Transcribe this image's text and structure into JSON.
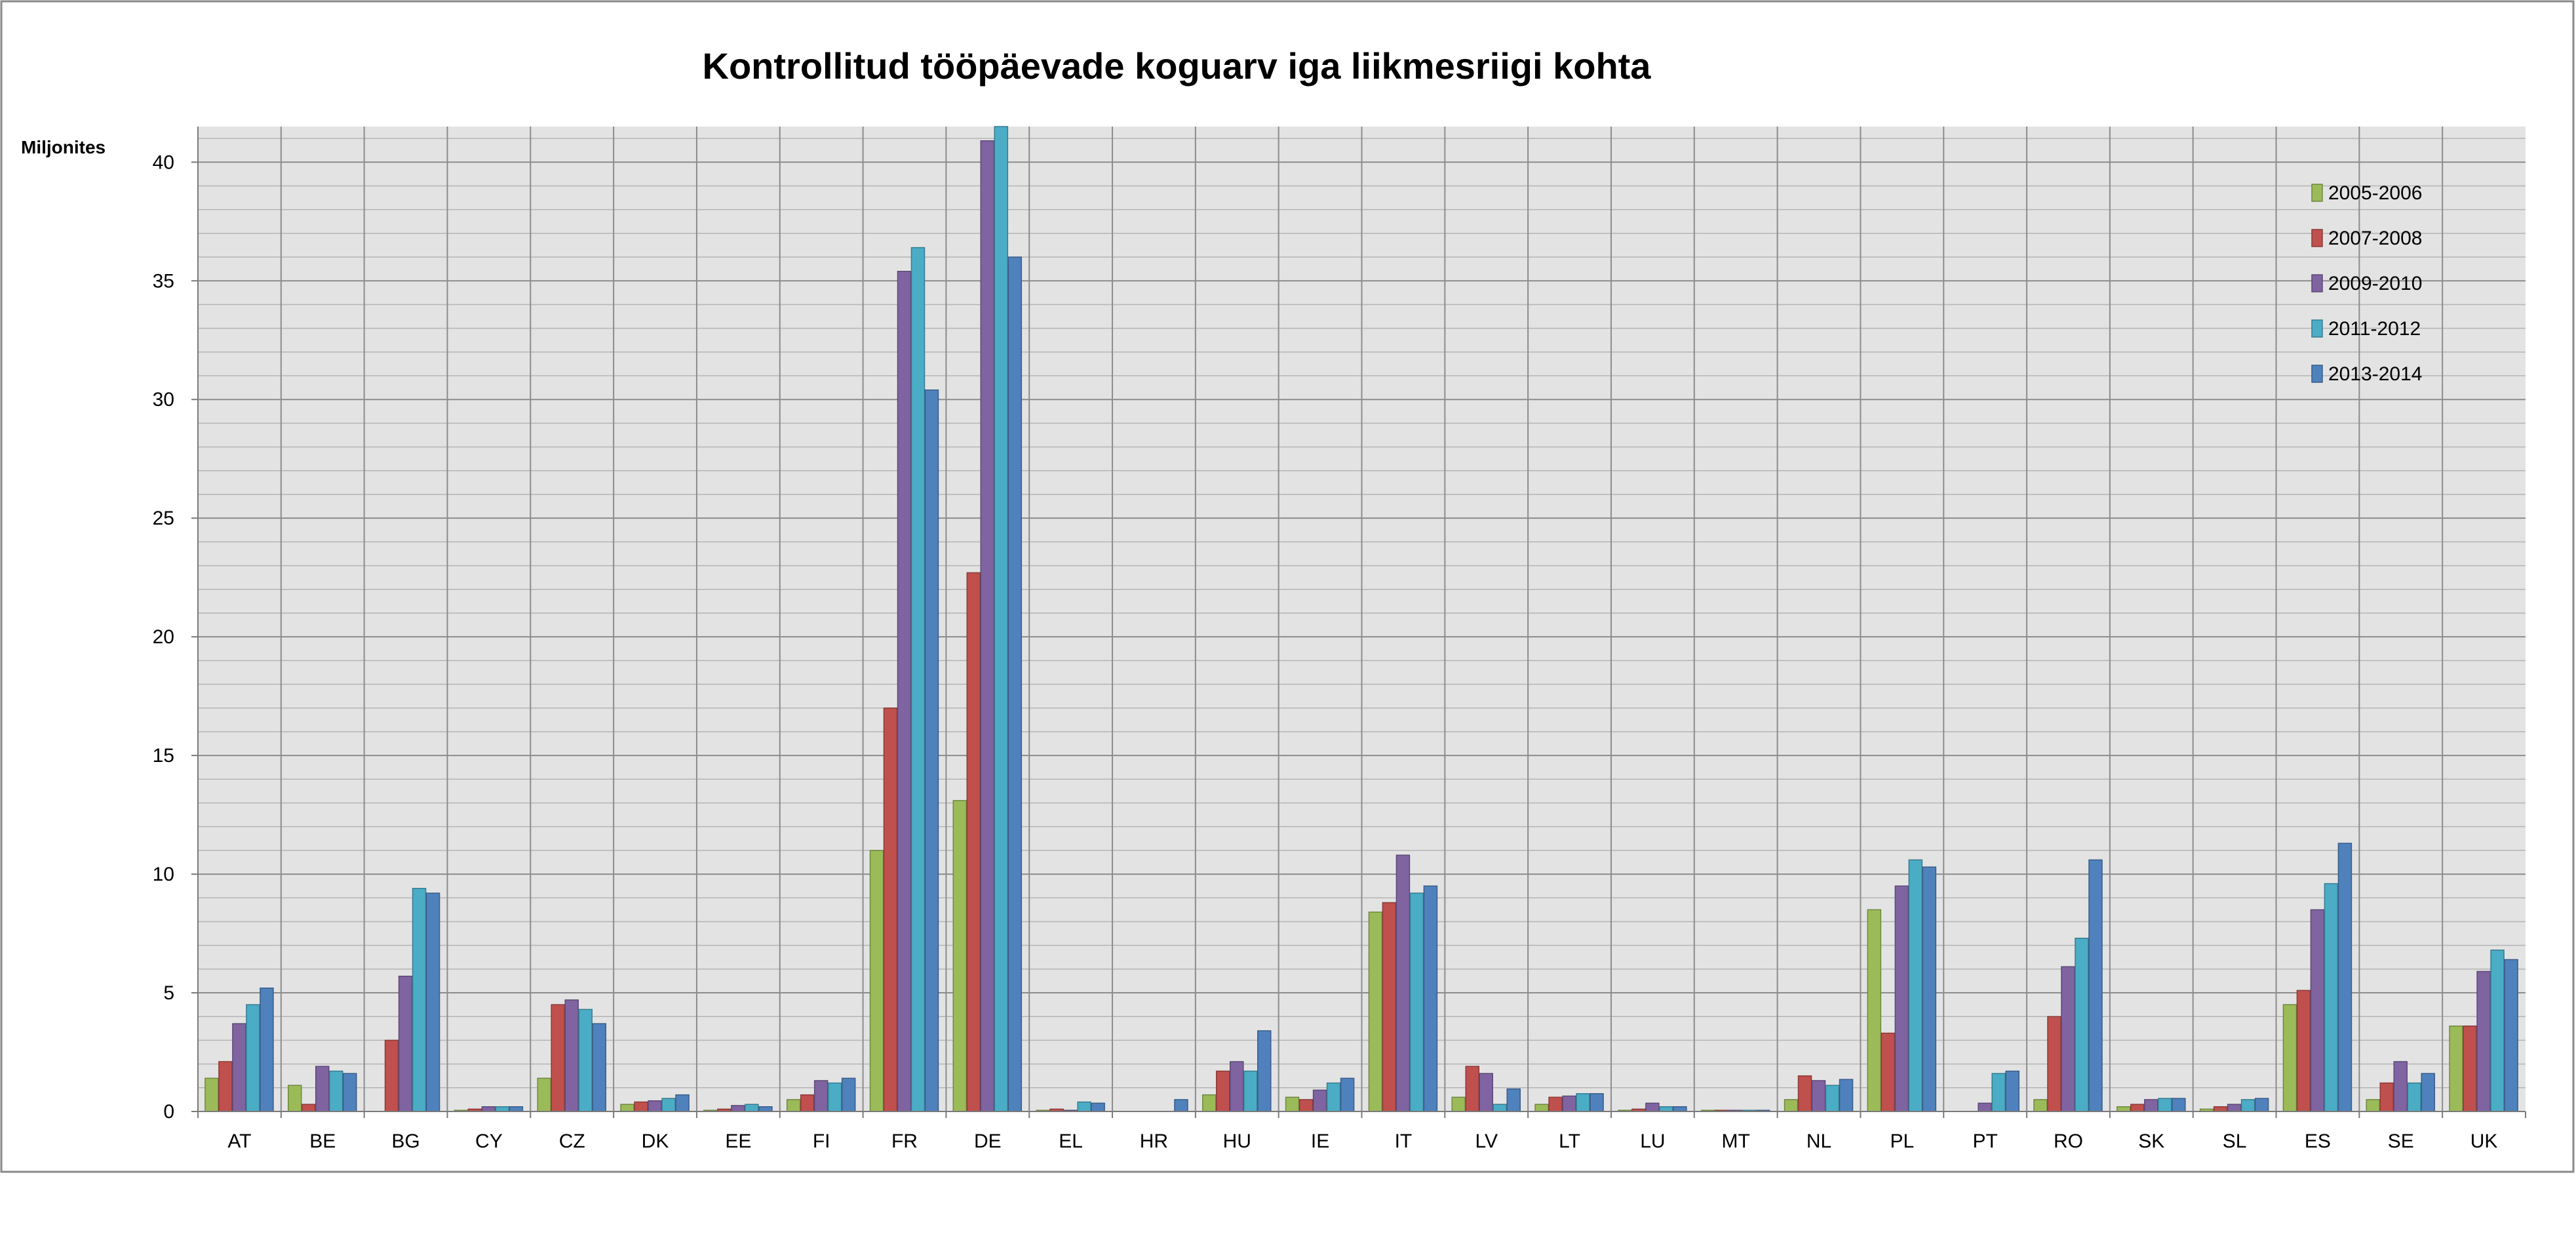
{
  "chart_data": {
    "type": "bar",
    "title": "Kontrollitud tööpäevade koguarv iga liikmesriigi kohta",
    "ylabel": "Miljonites",
    "xlabel": "",
    "ylim": [
      0,
      41.5
    ],
    "yticks": [
      0,
      5,
      10,
      15,
      20,
      25,
      30,
      35,
      40
    ],
    "grid": true,
    "legend_position": "top-right",
    "categories": [
      "AT",
      "BE",
      "BG",
      "CY",
      "CZ",
      "DK",
      "EE",
      "FI",
      "FR",
      "DE",
      "EL",
      "HR",
      "HU",
      "IE",
      "IT",
      "LV",
      "LT",
      "LU",
      "MT",
      "NL",
      "PL",
      "PT",
      "RO",
      "SK",
      "SL",
      "ES",
      "SE",
      "UK"
    ],
    "series": [
      {
        "name": "2005-2006",
        "color": "#9BBB59",
        "values": [
          1.4,
          1.1,
          0,
          0.05,
          1.4,
          0.3,
          0.05,
          0.5,
          11.0,
          13.1,
          0.05,
          0,
          0.7,
          0.6,
          8.4,
          0.6,
          0.3,
          0.05,
          0.05,
          0.5,
          8.5,
          0,
          0.5,
          0.2,
          0.1,
          4.5,
          0.5,
          3.6
        ]
      },
      {
        "name": "2007-2008",
        "color": "#C0504D",
        "values": [
          2.1,
          0.3,
          3.0,
          0.1,
          4.5,
          0.4,
          0.1,
          0.7,
          17.0,
          22.7,
          0.1,
          0,
          1.7,
          0.5,
          8.8,
          1.9,
          0.6,
          0.1,
          0.05,
          1.5,
          3.3,
          0,
          4.0,
          0.3,
          0.2,
          5.1,
          1.2,
          3.6
        ]
      },
      {
        "name": "2009-2010",
        "color": "#8064A2",
        "values": [
          3.7,
          1.9,
          5.7,
          0.2,
          4.7,
          0.45,
          0.25,
          1.3,
          35.4,
          40.9,
          0.05,
          0,
          2.1,
          0.9,
          10.8,
          1.6,
          0.65,
          0.35,
          0.05,
          1.3,
          9.5,
          0.35,
          6.1,
          0.5,
          0.3,
          8.5,
          2.1,
          5.9
        ]
      },
      {
        "name": "2011-2012",
        "color": "#4BACC6",
        "values": [
          4.5,
          1.7,
          9.4,
          0.2,
          4.3,
          0.55,
          0.3,
          1.2,
          36.4,
          41.5,
          0.4,
          0,
          1.7,
          1.2,
          9.2,
          0.3,
          0.75,
          0.2,
          0.05,
          1.1,
          10.6,
          1.6,
          7.3,
          0.55,
          0.5,
          9.6,
          1.2,
          6.8
        ]
      },
      {
        "name": "2013-2014",
        "color": "#4F81BD",
        "values": [
          5.2,
          1.6,
          9.2,
          0.2,
          3.7,
          0.7,
          0.2,
          1.4,
          30.4,
          36.0,
          0.35,
          0.5,
          3.4,
          1.4,
          9.5,
          0.95,
          0.75,
          0.2,
          0.05,
          1.35,
          10.3,
          1.7,
          10.6,
          0.55,
          0.55,
          11.3,
          1.6,
          6.4
        ]
      }
    ]
  }
}
